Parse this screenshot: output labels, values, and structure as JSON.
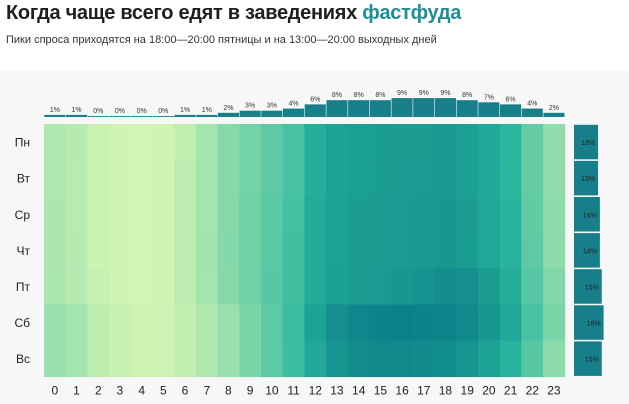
{
  "header": {
    "title_main": "Когда чаще всего едят в заведениях",
    "title_accent": "фастфуда",
    "subtitle": "Пики спроса приходятся на 18:00—20:00 пятницы и на 13:00—20:00 выходных дней"
  },
  "colors": {
    "accent": "#1f8f96",
    "bar": "#177f89",
    "heat_low": "#d8f7b4",
    "heat_mid": "#2ab79e",
    "heat_high": "#087a86"
  },
  "chart_data": {
    "type": "heatmap",
    "hours": [
      "0",
      "1",
      "2",
      "3",
      "4",
      "5",
      "6",
      "7",
      "8",
      "9",
      "10",
      "11",
      "12",
      "13",
      "14",
      "15",
      "16",
      "17",
      "18",
      "19",
      "20",
      "21",
      "22",
      "23"
    ],
    "days": [
      "Пн",
      "Вт",
      "Ср",
      "Чт",
      "Пт",
      "Сб",
      "Вс"
    ],
    "hourly_share_labels": [
      "1%",
      "1%",
      "0%",
      "0%",
      "0%",
      "0%",
      "1%",
      "1%",
      "2%",
      "3%",
      "3%",
      "4%",
      "6%",
      "8%",
      "8%",
      "8%",
      "9%",
      "9%",
      "9%",
      "8%",
      "7%",
      "6%",
      "4%",
      "2%"
    ],
    "hourly_share": [
      1,
      1,
      0,
      0,
      0,
      0,
      1,
      1,
      2,
      3,
      3,
      4,
      6,
      8,
      8,
      8,
      9,
      9,
      9,
      8,
      7,
      6,
      4,
      2
    ],
    "daily_share_labels": [
      "13%",
      "13%",
      "14%",
      "14%",
      "15%",
      "16%",
      "15%"
    ],
    "daily_share": [
      13,
      13,
      14,
      14,
      15,
      16,
      15
    ],
    "intensity": [
      [
        0.14,
        0.12,
        0.05,
        0.03,
        0.02,
        0.03,
        0.08,
        0.18,
        0.28,
        0.35,
        0.42,
        0.5,
        0.66,
        0.74,
        0.76,
        0.77,
        0.78,
        0.78,
        0.8,
        0.76,
        0.7,
        0.6,
        0.4,
        0.25
      ],
      [
        0.14,
        0.11,
        0.05,
        0.03,
        0.02,
        0.03,
        0.09,
        0.18,
        0.28,
        0.35,
        0.42,
        0.5,
        0.66,
        0.74,
        0.76,
        0.77,
        0.78,
        0.79,
        0.8,
        0.76,
        0.7,
        0.6,
        0.4,
        0.25
      ],
      [
        0.15,
        0.11,
        0.05,
        0.03,
        0.02,
        0.03,
        0.09,
        0.18,
        0.28,
        0.36,
        0.43,
        0.51,
        0.67,
        0.75,
        0.77,
        0.78,
        0.79,
        0.8,
        0.81,
        0.77,
        0.7,
        0.61,
        0.41,
        0.26
      ],
      [
        0.15,
        0.12,
        0.05,
        0.03,
        0.02,
        0.03,
        0.09,
        0.19,
        0.29,
        0.36,
        0.43,
        0.52,
        0.67,
        0.75,
        0.77,
        0.78,
        0.79,
        0.8,
        0.81,
        0.78,
        0.71,
        0.62,
        0.42,
        0.26
      ],
      [
        0.16,
        0.12,
        0.06,
        0.03,
        0.02,
        0.03,
        0.09,
        0.18,
        0.28,
        0.36,
        0.44,
        0.52,
        0.68,
        0.76,
        0.78,
        0.79,
        0.81,
        0.84,
        0.88,
        0.86,
        0.78,
        0.66,
        0.45,
        0.3
      ],
      [
        0.22,
        0.18,
        0.1,
        0.06,
        0.04,
        0.04,
        0.08,
        0.14,
        0.22,
        0.32,
        0.42,
        0.55,
        0.74,
        0.86,
        0.92,
        0.95,
        0.96,
        0.95,
        0.94,
        0.9,
        0.82,
        0.7,
        0.5,
        0.32
      ],
      [
        0.22,
        0.18,
        0.1,
        0.06,
        0.04,
        0.04,
        0.08,
        0.14,
        0.22,
        0.32,
        0.42,
        0.54,
        0.7,
        0.82,
        0.88,
        0.9,
        0.9,
        0.89,
        0.87,
        0.82,
        0.74,
        0.62,
        0.44,
        0.26
      ]
    ]
  }
}
